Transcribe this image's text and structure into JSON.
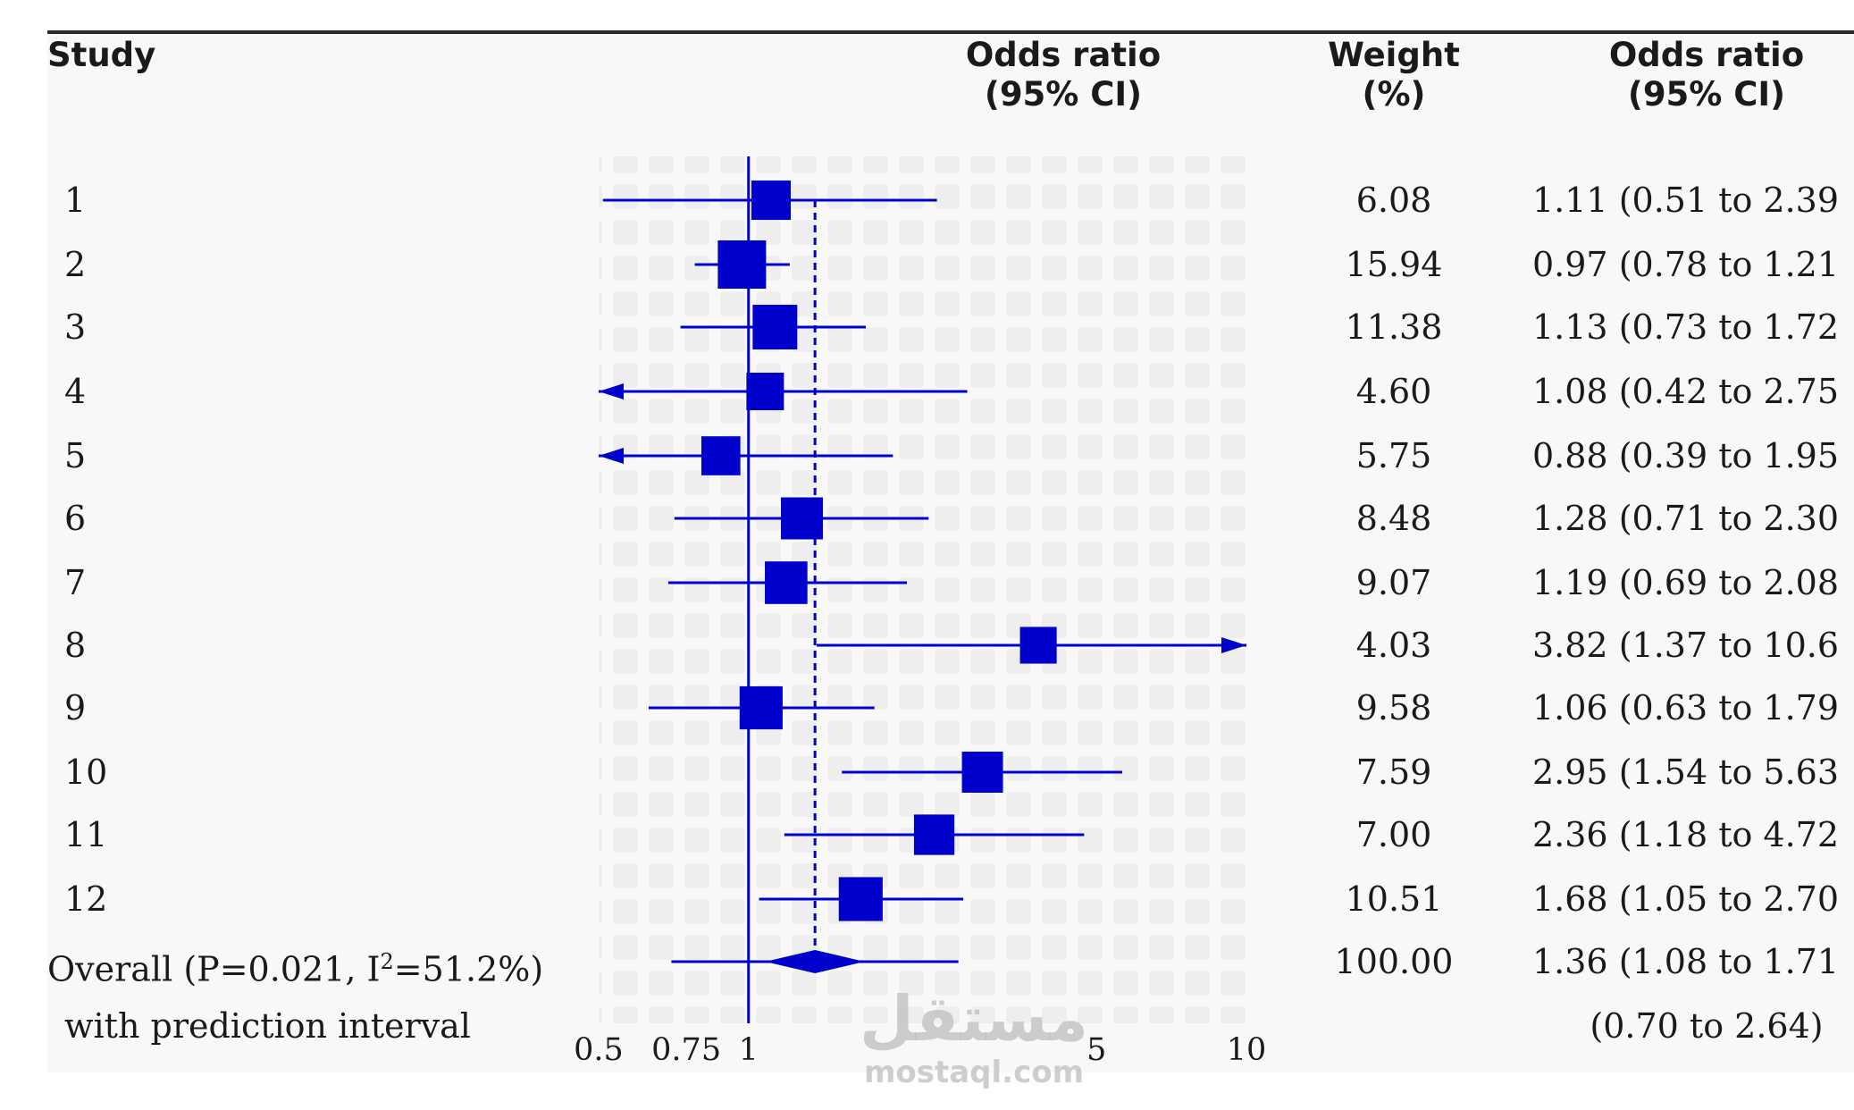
{
  "headers": {
    "study": "Study",
    "or_line1": "Odds ratio",
    "or_line2": "(95% CI)",
    "weight_line1": "Weight",
    "weight_line2": "(%)",
    "orci_line1": "Odds ratio",
    "orci_line2": "(95% CI)"
  },
  "rows": [
    {
      "study": "1",
      "weight": "6.08",
      "ci_text": "1.11 (0.51 to 2.39"
    },
    {
      "study": "2",
      "weight": "15.94",
      "ci_text": "0.97 (0.78 to 1.21"
    },
    {
      "study": "3",
      "weight": "11.38",
      "ci_text": "1.13 (0.73 to 1.72"
    },
    {
      "study": "4",
      "weight": "4.60",
      "ci_text": "1.08 (0.42 to 2.75"
    },
    {
      "study": "5",
      "weight": "5.75",
      "ci_text": "0.88 (0.39 to 1.95"
    },
    {
      "study": "6",
      "weight": "8.48",
      "ci_text": "1.28 (0.71 to 2.30"
    },
    {
      "study": "7",
      "weight": "9.07",
      "ci_text": "1.19 (0.69 to 2.08"
    },
    {
      "study": "8",
      "weight": "4.03",
      "ci_text": "3.82 (1.37 to 10.6"
    },
    {
      "study": "9",
      "weight": "9.58",
      "ci_text": "1.06 (0.63 to 1.79"
    },
    {
      "study": "10",
      "weight": "7.59",
      "ci_text": "2.95 (1.54 to 5.63"
    },
    {
      "study": "11",
      "weight": "7.00",
      "ci_text": "2.36 (1.18 to 4.72"
    },
    {
      "study": "12",
      "weight": "10.51",
      "ci_text": "1.68 (1.05 to 2.70"
    }
  ],
  "overall": {
    "label_pre": "Overall (P=0.021, I",
    "label_sup": "2",
    "label_post": "=51.2%)",
    "weight": "100.00",
    "ci_text": "1.36 (1.08 to 1.71",
    "pi_label": "with prediction interval",
    "pi_text": "(0.70 to 2.64)"
  },
  "watermark": {
    "arabic": "مستقل",
    "latin": "mostaql.com"
  },
  "chart_data": {
    "type": "forest",
    "x_scale": "log",
    "xlim": [
      0.5,
      10
    ],
    "x_ticks": [
      0.5,
      0.75,
      1,
      5,
      10
    ],
    "x_tick_labels": [
      "0.5",
      "0.75",
      "1",
      "5",
      "10"
    ],
    "null_line": 1,
    "pooled_line": 1.36,
    "marker_color": "#0000cc",
    "studies": [
      {
        "study": "1",
        "or": 1.11,
        "lo": 0.51,
        "hi": 2.39,
        "weight": 6.08
      },
      {
        "study": "2",
        "or": 0.97,
        "lo": 0.78,
        "hi": 1.21,
        "weight": 15.94
      },
      {
        "study": "3",
        "or": 1.13,
        "lo": 0.73,
        "hi": 1.72,
        "weight": 11.38
      },
      {
        "study": "4",
        "or": 1.08,
        "lo": 0.42,
        "hi": 2.75,
        "weight": 4.6
      },
      {
        "study": "5",
        "or": 0.88,
        "lo": 0.39,
        "hi": 1.95,
        "weight": 5.75
      },
      {
        "study": "6",
        "or": 1.28,
        "lo": 0.71,
        "hi": 2.3,
        "weight": 8.48
      },
      {
        "study": "7",
        "or": 1.19,
        "lo": 0.69,
        "hi": 2.08,
        "weight": 9.07
      },
      {
        "study": "8",
        "or": 3.82,
        "lo": 1.37,
        "hi": 10.6,
        "weight": 4.03
      },
      {
        "study": "9",
        "or": 1.06,
        "lo": 0.63,
        "hi": 1.79,
        "weight": 9.58
      },
      {
        "study": "10",
        "or": 2.95,
        "lo": 1.54,
        "hi": 5.63,
        "weight": 7.59
      },
      {
        "study": "11",
        "or": 2.36,
        "lo": 1.18,
        "hi": 4.72,
        "weight": 7.0
      },
      {
        "study": "12",
        "or": 1.68,
        "lo": 1.05,
        "hi": 2.7,
        "weight": 10.51
      }
    ],
    "overall": {
      "or": 1.36,
      "lo": 1.08,
      "hi": 1.71,
      "weight": 100.0,
      "pi_lo": 0.7,
      "pi_hi": 2.64
    }
  }
}
